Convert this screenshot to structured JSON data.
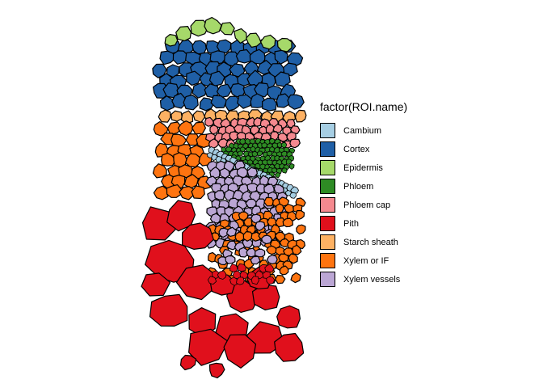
{
  "legend": {
    "title": "factor(ROI.name)",
    "items": [
      {
        "key": "cambium",
        "label": "Cambium",
        "color": "#a6cee3"
      },
      {
        "key": "cortex",
        "label": "Cortex",
        "color": "#1f5fa6"
      },
      {
        "key": "epidermis",
        "label": "Epidermis",
        "color": "#a6d96a"
      },
      {
        "key": "phloem",
        "label": "Phloem",
        "color": "#2e8b24"
      },
      {
        "key": "phloem-cap",
        "label": "Phloem cap",
        "color": "#f5898f"
      },
      {
        "key": "pith",
        "label": "Pith",
        "color": "#e0101c"
      },
      {
        "key": "starch-sheath",
        "label": "Starch sheath",
        "color": "#fdb163"
      },
      {
        "key": "xylem-or-if",
        "label": "Xylem or IF",
        "color": "#fe7410"
      },
      {
        "key": "xylem-vessels",
        "label": "Xylem vessels",
        "color": "#bba6d4"
      }
    ]
  }
}
